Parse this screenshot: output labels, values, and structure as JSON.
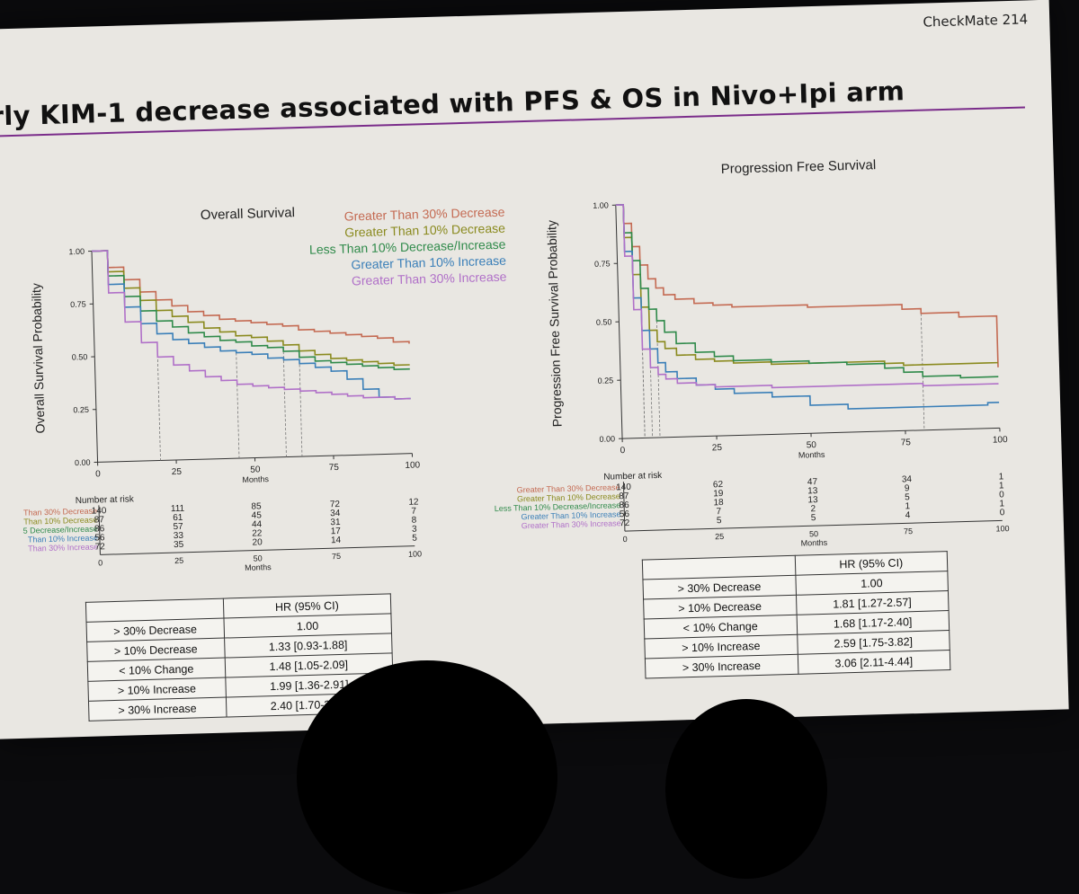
{
  "header": {
    "badge": "CheckMate 214",
    "title": "rly KIM-1 decrease associated with PFS & OS in Nivo+Ipi arm"
  },
  "colors": {
    "gt30dec": "#c46a52",
    "gt10dec": "#8a8a1e",
    "lt10chg": "#2f8a4a",
    "gt10inc": "#3a7fb8",
    "gt30inc": "#b070c8"
  },
  "legend": [
    {
      "label": "Greater Than 30% Decrease",
      "color": "#c46a52"
    },
    {
      "label": "Greater Than 10% Decrease",
      "color": "#8a8a1e"
    },
    {
      "label": "Less Than 10% Decrease/Increase",
      "color": "#2f8a4a"
    },
    {
      "label": "Greater Than 10% Increase",
      "color": "#3a7fb8"
    },
    {
      "label": "Greater Than 30% Increase",
      "color": "#b070c8"
    }
  ],
  "chart_data": [
    {
      "type": "line",
      "title": "Overall Survival",
      "xlabel": "Months",
      "ylabel": "Overall Survival Probability",
      "xlim": [
        0,
        100
      ],
      "ylim": [
        0,
        1
      ],
      "x_ticks": [
        0,
        25,
        50,
        75,
        100
      ],
      "y_ticks": [
        "0.00",
        "0.25",
        "0.50",
        "0.75",
        "1.00"
      ],
      "x": [
        0,
        5,
        10,
        15,
        20,
        25,
        30,
        35,
        40,
        45,
        50,
        55,
        60,
        65,
        70,
        75,
        80,
        85,
        90,
        95,
        100
      ],
      "series": [
        {
          "name": "Greater Than 30% Decrease",
          "values": [
            1.0,
            0.92,
            0.86,
            0.8,
            0.76,
            0.73,
            0.7,
            0.68,
            0.66,
            0.65,
            0.64,
            0.63,
            0.62,
            0.6,
            0.59,
            0.58,
            0.57,
            0.56,
            0.55,
            0.53,
            0.52
          ]
        },
        {
          "name": "Greater Than 10% Decrease",
          "values": [
            1.0,
            0.9,
            0.82,
            0.76,
            0.71,
            0.68,
            0.65,
            0.62,
            0.6,
            0.58,
            0.57,
            0.55,
            0.53,
            0.5,
            0.48,
            0.46,
            0.45,
            0.44,
            0.43,
            0.42,
            0.42
          ]
        },
        {
          "name": "Less Than 10% Decrease/Increase",
          "values": [
            1.0,
            0.88,
            0.78,
            0.71,
            0.66,
            0.63,
            0.6,
            0.58,
            0.56,
            0.55,
            0.53,
            0.52,
            0.5,
            0.47,
            0.45,
            0.44,
            0.43,
            0.42,
            0.41,
            0.4,
            0.4
          ]
        },
        {
          "name": "Greater Than 10% Increase",
          "values": [
            1.0,
            0.84,
            0.73,
            0.65,
            0.6,
            0.57,
            0.55,
            0.53,
            0.51,
            0.5,
            0.49,
            0.47,
            0.46,
            0.44,
            0.42,
            0.4,
            0.36,
            0.31,
            0.27,
            0.26,
            0.26
          ]
        },
        {
          "name": "Greater Than 30% Increase",
          "values": [
            1.0,
            0.8,
            0.66,
            0.56,
            0.49,
            0.45,
            0.42,
            0.39,
            0.37,
            0.35,
            0.34,
            0.33,
            0.32,
            0.31,
            0.3,
            0.29,
            0.28,
            0.27,
            0.27,
            0.26,
            0.26
          ]
        }
      ],
      "risk_table": {
        "title": "Number at risk",
        "row_labels": [
          "Than 30% Decrease",
          "Than 10% Decrease",
          "5 Decrease/Increase",
          "Than 10% Increase",
          "Than 30% Increase"
        ],
        "timepoints": [
          0,
          25,
          50,
          75,
          100
        ],
        "rows": [
          [
            140,
            111,
            85,
            72,
            12
          ],
          [
            87,
            61,
            45,
            34,
            7
          ],
          [
            86,
            57,
            44,
            31,
            8
          ],
          [
            56,
            33,
            22,
            17,
            3
          ],
          [
            72,
            35,
            20,
            14,
            5
          ]
        ],
        "xlabel": "Months"
      }
    },
    {
      "type": "line",
      "title": "Progression Free Survival",
      "xlabel": "Months",
      "ylabel": "Progression Free Survival Probability",
      "xlim": [
        0,
        100
      ],
      "ylim": [
        0,
        1
      ],
      "x_ticks": [
        0,
        25,
        50,
        75,
        100
      ],
      "y_ticks": [
        "0.00",
        "0.25",
        "0.50",
        "0.75",
        "1.00"
      ],
      "x": [
        0,
        2,
        4,
        6,
        8,
        10,
        12,
        15,
        20,
        25,
        30,
        40,
        50,
        60,
        70,
        75,
        80,
        90,
        97,
        100
      ],
      "series": [
        {
          "name": "Greater Than 30% Decrease",
          "values": [
            1.0,
            0.92,
            0.82,
            0.74,
            0.68,
            0.64,
            0.61,
            0.59,
            0.57,
            0.56,
            0.55,
            0.55,
            0.54,
            0.54,
            0.54,
            0.52,
            0.5,
            0.48,
            0.48,
            0.26
          ]
        },
        {
          "name": "Greater Than 10% Decrease",
          "values": [
            1.0,
            0.86,
            0.7,
            0.56,
            0.46,
            0.41,
            0.38,
            0.35,
            0.33,
            0.32,
            0.31,
            0.3,
            0.3,
            0.3,
            0.29,
            0.28,
            0.28,
            0.28,
            0.28,
            0.28
          ]
        },
        {
          "name": "Less Than 10% Decrease/Increase",
          "values": [
            1.0,
            0.88,
            0.76,
            0.64,
            0.55,
            0.5,
            0.45,
            0.4,
            0.36,
            0.34,
            0.32,
            0.31,
            0.3,
            0.29,
            0.27,
            0.25,
            0.23,
            0.22,
            0.22,
            0.22
          ]
        },
        {
          "name": "Greater Than 10% Increase",
          "values": [
            1.0,
            0.8,
            0.6,
            0.46,
            0.38,
            0.32,
            0.28,
            0.25,
            0.22,
            0.2,
            0.18,
            0.16,
            0.12,
            0.1,
            0.1,
            0.1,
            0.1,
            0.1,
            0.11,
            0.11
          ]
        },
        {
          "name": "Greater Than 30% Increase",
          "values": [
            1.0,
            0.78,
            0.55,
            0.38,
            0.3,
            0.27,
            0.25,
            0.23,
            0.22,
            0.21,
            0.21,
            0.2,
            0.2,
            0.2,
            0.2,
            0.2,
            0.19,
            0.19,
            0.19,
            0.19
          ]
        }
      ],
      "risk_table": {
        "title": "Number at risk",
        "row_labels": [
          "Greater Than 30% Decrease",
          "Greater Than 10% Decrease",
          "Less Than 10% Decrease/Increase",
          "Greater Than 10% Increase",
          "Greater Than 30% Increase"
        ],
        "timepoints": [
          0,
          25,
          50,
          75,
          100
        ],
        "rows": [
          [
            140,
            62,
            47,
            34,
            1
          ],
          [
            87,
            19,
            13,
            9,
            1
          ],
          [
            86,
            18,
            13,
            5,
            0
          ],
          [
            56,
            7,
            2,
            1,
            1
          ],
          [
            72,
            5,
            5,
            4,
            0
          ]
        ],
        "xlabel": "Months"
      }
    }
  ],
  "hr_tables": [
    {
      "header": "HR (95% CI)",
      "rows": [
        {
          "label": "> 30% Decrease",
          "value": "1.00"
        },
        {
          "label": "> 10% Decrease",
          "value": "1.33 [0.93-1.88]"
        },
        {
          "label": "< 10% Change",
          "value": "1.48 [1.05-2.09]"
        },
        {
          "label": "> 10% Increase",
          "value": "1.99 [1.36-2.91]"
        },
        {
          "label": "> 30% Increase",
          "value": "2.40 [1.70-3.40]"
        }
      ]
    },
    {
      "header": "HR (95% CI)",
      "rows": [
        {
          "label": "> 30% Decrease",
          "value": "1.00"
        },
        {
          "label": "> 10% Decrease",
          "value": "1.81 [1.27-2.57]"
        },
        {
          "label": "< 10% Change",
          "value": "1.68 [1.17-2.40]"
        },
        {
          "label": "> 10% Increase",
          "value": "2.59 [1.75-3.82]"
        },
        {
          "label": "> 30% Increase",
          "value": "3.06 [2.11-4.44]"
        }
      ]
    }
  ]
}
